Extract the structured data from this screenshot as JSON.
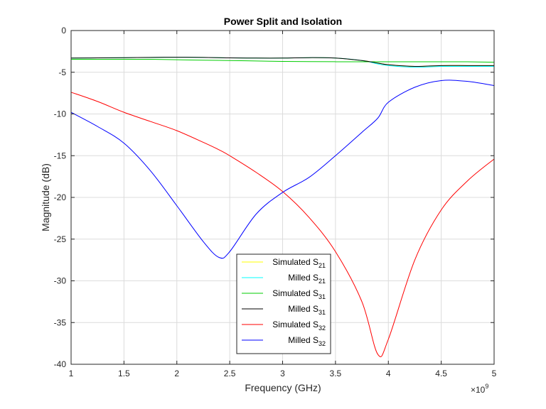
{
  "chart_data": {
    "type": "line",
    "title": "Power Split and Isolation",
    "xlabel": "Frequency (GHz)",
    "ylabel": "Magnitude (dB)",
    "x_multiplier": {
      "base": "×10",
      "exponent": "9"
    },
    "xlim": [
      1,
      5
    ],
    "ylim": [
      -40,
      0
    ],
    "x_ticks": [
      1,
      1.5,
      2,
      2.5,
      3,
      3.5,
      4,
      4.5,
      5
    ],
    "x_tick_labels": [
      "1",
      "1.5",
      "2",
      "2.5",
      "3",
      "3.5",
      "4",
      "4.5",
      "5"
    ],
    "y_ticks": [
      0,
      -5,
      -10,
      -15,
      -20,
      -25,
      -30,
      -35,
      -40
    ],
    "y_tick_labels": [
      "0",
      "-5",
      "-10",
      "-15",
      "-20",
      "-25",
      "-30",
      "-35",
      "-40"
    ],
    "grid": true,
    "legend_position": "bottom-center",
    "x": [
      1.0,
      1.25,
      1.5,
      1.75,
      2.0,
      2.25,
      2.4,
      2.5,
      2.75,
      3.0,
      3.25,
      3.5,
      3.75,
      3.9,
      4.0,
      4.25,
      4.5,
      4.75,
      5.0
    ],
    "series": [
      {
        "name": "Simulated S21",
        "label_main": "Simulated S",
        "label_sub": "21",
        "color": "#ffff00",
        "values": [
          -3.3,
          -3.28,
          -3.25,
          -3.22,
          -3.2,
          -3.22,
          -3.25,
          -3.28,
          -3.3,
          -3.3,
          -3.25,
          -3.3,
          -3.6,
          -3.9,
          -4.1,
          -4.3,
          -4.2,
          -4.2,
          -4.2
        ]
      },
      {
        "name": "Milled S21",
        "label_main": "Milled S",
        "label_sub": "21",
        "color": "#00ffff",
        "values": [
          -3.3,
          -3.28,
          -3.25,
          -3.22,
          -3.2,
          -3.22,
          -3.25,
          -3.28,
          -3.3,
          -3.3,
          -3.25,
          -3.3,
          -3.6,
          -4.0,
          -4.2,
          -4.4,
          -4.3,
          -4.3,
          -4.3
        ]
      },
      {
        "name": "Simulated S31",
        "label_main": "Simulated S",
        "label_sub": "31",
        "color": "#00cc00",
        "values": [
          -3.45,
          -3.45,
          -3.45,
          -3.45,
          -3.5,
          -3.55,
          -3.58,
          -3.6,
          -3.65,
          -3.7,
          -3.72,
          -3.74,
          -3.75,
          -3.75,
          -3.75,
          -3.75,
          -3.75,
          -3.75,
          -3.8
        ]
      },
      {
        "name": "Milled S31",
        "label_main": "Milled S",
        "label_sub": "31",
        "color": "#000000",
        "values": [
          -3.3,
          -3.28,
          -3.25,
          -3.22,
          -3.2,
          -3.22,
          -3.25,
          -3.28,
          -3.3,
          -3.3,
          -3.25,
          -3.3,
          -3.6,
          -3.9,
          -4.1,
          -4.3,
          -4.2,
          -4.2,
          -4.2
        ]
      },
      {
        "name": "Simulated S32",
        "label_main": "Simulated S",
        "label_sub": "32",
        "color": "#ff0000",
        "values": [
          -7.4,
          -8.5,
          -9.8,
          -10.9,
          -12.0,
          -13.4,
          -14.3,
          -15.0,
          -17.0,
          -19.3,
          -22.4,
          -26.5,
          -32.5,
          -38.8,
          -37.0,
          -27.5,
          -21.5,
          -18.0,
          -15.4
        ]
      },
      {
        "name": "Milled S32",
        "label_main": "Milled S",
        "label_sub": "32",
        "color": "#0000ff",
        "values": [
          -9.8,
          -11.5,
          -13.5,
          -16.8,
          -21.0,
          -25.3,
          -27.2,
          -26.5,
          -22.0,
          -19.4,
          -17.6,
          -15.0,
          -12.2,
          -10.5,
          -8.6,
          -6.8,
          -6.0,
          -6.1,
          -6.6
        ]
      }
    ]
  }
}
